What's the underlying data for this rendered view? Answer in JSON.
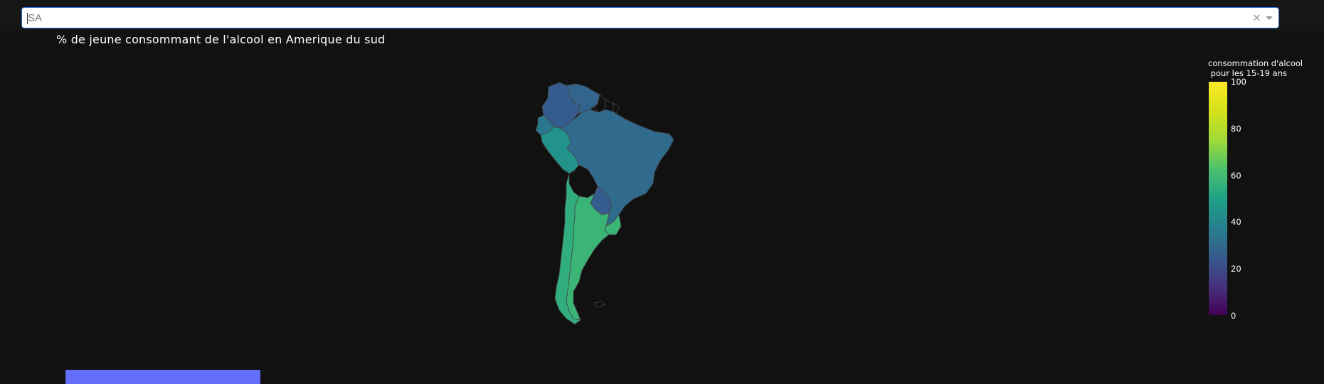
{
  "dropdown": {
    "value": "SA",
    "clear_label": "×"
  },
  "map": {
    "title": "% de jeune consommant de l'alcool en Amerique du sud",
    "colorbar_title": "consommation d'alcool\n pour les 15-19 ans",
    "colorbar_ticks": [
      "100",
      "80",
      "60",
      "40",
      "20",
      "0"
    ],
    "colorscale": [
      "#440154",
      "#46327e",
      "#365c8d",
      "#277f8e",
      "#1fa187",
      "#4ac16d",
      "#a0da39",
      "#d4e21a",
      "#fde725"
    ],
    "range": [
      0,
      100
    ],
    "regions": [
      {
        "name": "Colombia",
        "value": 25
      },
      {
        "name": "Venezuela",
        "value": 28
      },
      {
        "name": "Ecuador",
        "value": 35
      },
      {
        "name": "Peru",
        "value": 45
      },
      {
        "name": "Brazil",
        "value": 30
      },
      {
        "name": "Paraguay",
        "value": 25
      },
      {
        "name": "Uruguay",
        "value": 58
      },
      {
        "name": "Argentina",
        "value": 58
      },
      {
        "name": "Chile",
        "value": 55
      }
    ],
    "no_data_regions": [
      "Guyana",
      "Suriname",
      "French Guiana",
      "Bolivia",
      "Falkland Islands"
    ]
  },
  "colors": {
    "border": "#444444",
    "background": "#111111",
    "button": "#636efa"
  }
}
